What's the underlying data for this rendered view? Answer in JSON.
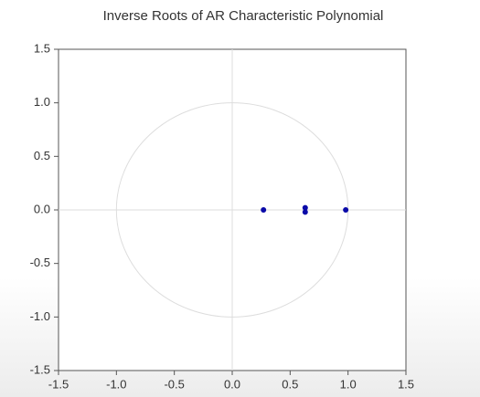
{
  "chart_data": {
    "type": "scatter",
    "title": "Inverse Roots of AR Characteristic Polynomial",
    "series": [
      {
        "color": "#0a0aa8",
        "x": [
          0.27,
          0.63,
          0.63,
          0.98
        ],
        "values": [
          0.0,
          0.02,
          -0.02,
          0.0
        ]
      }
    ],
    "xlim": [
      -1.5,
      1.5
    ],
    "ylim": [
      -1.5,
      1.5
    ],
    "xticks": [
      {
        "value": -1.5,
        "label": "-1.5"
      },
      {
        "value": -1.0,
        "label": "-1.0"
      },
      {
        "value": -0.5,
        "label": "-0.5"
      },
      {
        "value": 0,
        "label": "0.0"
      },
      {
        "value": 0.5,
        "label": "0.5"
      },
      {
        "value": 1.0,
        "label": "1.0"
      },
      {
        "value": 1.5,
        "label": "1.5"
      }
    ],
    "yticks": [
      {
        "value": -1.5,
        "label": "-1.5"
      },
      {
        "value": -1.0,
        "label": "-1.0"
      },
      {
        "value": -0.5,
        "label": "-0.5"
      },
      {
        "value": 0,
        "label": "0.0"
      },
      {
        "value": 0.5,
        "label": "0.5"
      },
      {
        "value": 1.0,
        "label": "1.0"
      },
      {
        "value": 1.5,
        "label": "1.5"
      }
    ],
    "unit_circle": true,
    "zero_lines": true
  }
}
